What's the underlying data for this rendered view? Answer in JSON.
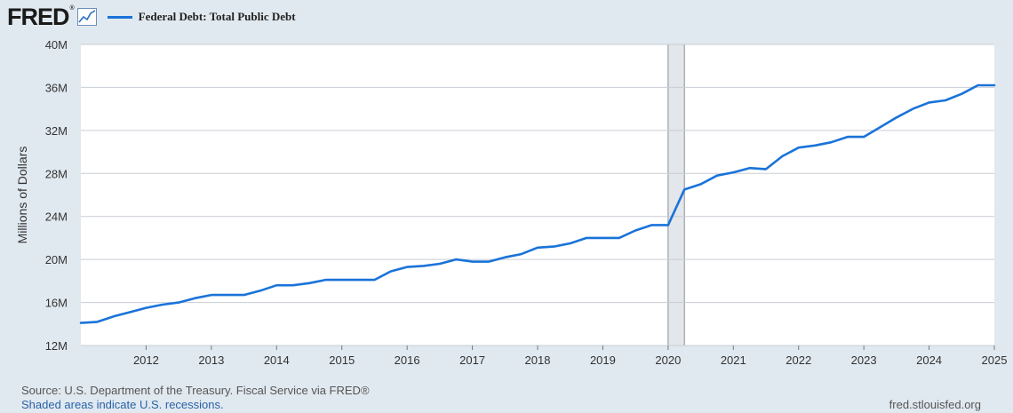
{
  "header": {
    "logo_text": "FRED",
    "logo_reg": "®",
    "legend_label": "Federal Debt: Total Public Debt",
    "series_color": "#1a73d9"
  },
  "footer": {
    "source": "Source: U.S. Department of the Treasury. Fiscal Service via FRED®",
    "shade_note": "Shaded areas indicate U.S. recessions.",
    "url": "fred.stlouisfed.org"
  },
  "chart_data": {
    "type": "line",
    "title": "Federal Debt: Total Public Debt",
    "ylabel": "Millions of Dollars",
    "xlabel": "",
    "xlim": [
      2011.0,
      2025.0
    ],
    "ylim": [
      12,
      40
    ],
    "y_ticks": [
      12,
      16,
      20,
      24,
      28,
      32,
      36,
      40
    ],
    "y_tick_labels": [
      "12M",
      "16M",
      "20M",
      "24M",
      "28M",
      "32M",
      "36M",
      "40M"
    ],
    "x_ticks": [
      2012,
      2013,
      2014,
      2015,
      2016,
      2017,
      2018,
      2019,
      2020,
      2021,
      2022,
      2023,
      2024,
      2025
    ],
    "x_tick_labels": [
      "2012",
      "2013",
      "2014",
      "2015",
      "2016",
      "2017",
      "2018",
      "2019",
      "2020",
      "2021",
      "2022",
      "2023",
      "2024",
      "2025"
    ],
    "grid": true,
    "legend": "top-left",
    "recessions": [
      [
        2020.0,
        2020.25
      ]
    ],
    "series": [
      {
        "name": "Federal Debt: Total Public Debt",
        "color": "#1a73d9",
        "x": [
          2011.0,
          2011.25,
          2011.5,
          2011.75,
          2012.0,
          2012.25,
          2012.5,
          2012.75,
          2013.0,
          2013.25,
          2013.5,
          2013.75,
          2014.0,
          2014.25,
          2014.5,
          2014.75,
          2015.0,
          2015.25,
          2015.5,
          2015.75,
          2016.0,
          2016.25,
          2016.5,
          2016.75,
          2017.0,
          2017.25,
          2017.5,
          2017.75,
          2018.0,
          2018.25,
          2018.5,
          2018.75,
          2019.0,
          2019.25,
          2019.5,
          2019.75,
          2020.0,
          2020.25,
          2020.5,
          2020.75,
          2021.0,
          2021.25,
          2021.5,
          2021.75,
          2022.0,
          2022.25,
          2022.5,
          2022.75,
          2023.0,
          2023.25,
          2023.5,
          2023.75,
          2024.0,
          2024.25,
          2024.5,
          2024.75,
          2025.0
        ],
        "y": [
          14.1,
          14.2,
          14.7,
          15.1,
          15.5,
          15.8,
          16.0,
          16.4,
          16.7,
          16.7,
          16.7,
          17.1,
          17.6,
          17.6,
          17.8,
          18.1,
          18.1,
          18.1,
          18.1,
          18.9,
          19.3,
          19.4,
          19.6,
          20.0,
          19.8,
          19.8,
          20.2,
          20.5,
          21.1,
          21.2,
          21.5,
          22.0,
          22.0,
          22.0,
          22.7,
          23.2,
          23.2,
          26.5,
          27.0,
          27.8,
          28.1,
          28.5,
          28.4,
          29.6,
          30.4,
          30.6,
          30.9,
          31.4,
          31.4,
          32.3,
          33.2,
          34.0,
          34.6,
          34.8,
          35.4,
          36.2,
          36.2
        ]
      }
    ]
  }
}
